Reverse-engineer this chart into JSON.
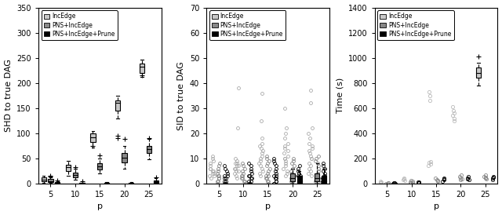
{
  "p_values": [
    5,
    10,
    15,
    20,
    25
  ],
  "colors": [
    "#c8c8c8",
    "#888888",
    "#000000"
  ],
  "legend_labels": [
    "IncEdge",
    "PNS+IncEdge",
    "PNS+IncEdge+Prune"
  ],
  "plot1": {
    "ylabel": "SHD to true DAG",
    "xlabel": "p",
    "ylim": [
      0,
      350
    ],
    "yticks": [
      0,
      50,
      100,
      150,
      200,
      250,
      300,
      350
    ],
    "boxes": {
      "IncEdge": {
        "5": {
          "q1": 5,
          "median": 8,
          "q3": 12,
          "whislo": 2,
          "whishi": 16,
          "fliers": []
        },
        "10": {
          "q1": 25,
          "median": 32,
          "q3": 38,
          "whislo": 15,
          "whishi": 45,
          "fliers": []
        },
        "15": {
          "q1": 82,
          "median": 92,
          "q3": 100,
          "whislo": 72,
          "whishi": 105,
          "fliers": [
            75
          ]
        },
        "20": {
          "q1": 145,
          "median": 160,
          "q3": 165,
          "whislo": 130,
          "whishi": 175,
          "fliers": [
            90,
            95
          ]
        },
        "25": {
          "q1": 220,
          "median": 232,
          "q3": 238,
          "whislo": 212,
          "whishi": 246,
          "fliers": [
            215
          ]
        }
      },
      "PNS+IncEdge": {
        "5": {
          "q1": 3,
          "median": 5,
          "q3": 9,
          "whislo": 1,
          "whishi": 12,
          "fliers": [
            14,
            16
          ]
        },
        "10": {
          "q1": 13,
          "median": 17,
          "q3": 22,
          "whislo": 7,
          "whishi": 30,
          "fliers": [
            32
          ]
        },
        "15": {
          "q1": 28,
          "median": 34,
          "q3": 40,
          "whislo": 20,
          "whishi": 50,
          "fliers": [
            56
          ]
        },
        "20": {
          "q1": 42,
          "median": 52,
          "q3": 60,
          "whislo": 30,
          "whishi": 75,
          "fliers": [
            88
          ]
        },
        "25": {
          "q1": 60,
          "median": 68,
          "q3": 75,
          "whislo": 48,
          "whishi": 88,
          "fliers": [
            90
          ]
        }
      },
      "PNS+IncEdge+Prune": {
        "5": {
          "q1": 0,
          "median": 1,
          "q3": 3,
          "whislo": 0,
          "whishi": 5,
          "fliers": [
            6
          ]
        },
        "10": {
          "q1": 0,
          "median": 1,
          "q3": 2,
          "whislo": 0,
          "whishi": 4,
          "fliers": [
            5
          ]
        },
        "15": {
          "q1": 0,
          "median": 1,
          "q3": 2,
          "whislo": 0,
          "whishi": 3,
          "fliers": []
        },
        "20": {
          "q1": 0,
          "median": 1,
          "q3": 2,
          "whislo": 0,
          "whishi": 3,
          "fliers": []
        },
        "25": {
          "q1": 1,
          "median": 3,
          "q3": 6,
          "whislo": 0,
          "whishi": 10,
          "fliers": [
            12
          ]
        }
      }
    }
  },
  "plot2": {
    "ylabel": "SID to true DAG",
    "xlabel": "p",
    "ylim": [
      0,
      70
    ],
    "yticks": [
      0,
      10,
      20,
      30,
      40,
      50,
      60,
      70
    ],
    "scatter_IncEdge": {
      "5": [
        2,
        3,
        4,
        5,
        6,
        7,
        8,
        9,
        10,
        11,
        3,
        4,
        5,
        6
      ],
      "10": [
        2,
        3,
        4,
        5,
        6,
        7,
        8,
        9,
        10,
        8,
        7,
        6,
        5,
        22,
        38
      ],
      "15": [
        3,
        4,
        5,
        6,
        7,
        8,
        9,
        10,
        11,
        12,
        13,
        14,
        15,
        16,
        18,
        25,
        36
      ],
      "20": [
        3,
        4,
        5,
        6,
        7,
        8,
        10,
        12,
        14,
        16,
        18,
        20,
        22,
        15,
        13,
        11,
        10,
        9,
        30
      ],
      "25": [
        3,
        4,
        5,
        6,
        7,
        8,
        10,
        12,
        14,
        16,
        18,
        20,
        22,
        15,
        13,
        11,
        10,
        32,
        37
      ]
    },
    "scatter_PNS": {
      "5": [
        0,
        1,
        1,
        2,
        2,
        3,
        3,
        4,
        5,
        6,
        7,
        8
      ],
      "10": [
        0,
        1,
        1,
        2,
        2,
        3,
        3,
        4,
        5,
        6,
        7,
        8
      ],
      "15": [
        0,
        1,
        1,
        2,
        2,
        3,
        3,
        4,
        5,
        6,
        7,
        8,
        9,
        10,
        11
      ],
      "20": [
        0,
        1,
        1,
        2,
        2,
        3,
        3,
        4,
        5,
        6,
        7,
        8,
        9,
        10
      ],
      "25": [
        0,
        1,
        1,
        2,
        2,
        3,
        3,
        4,
        5,
        6,
        7,
        8,
        9,
        10,
        11
      ]
    },
    "scatter_Prune": {
      "5": [
        0,
        0,
        1,
        1,
        2,
        2,
        3,
        3,
        4,
        5,
        6,
        7
      ],
      "10": [
        0,
        0,
        1,
        1,
        2,
        2,
        3,
        3,
        4,
        5,
        6,
        7,
        8
      ],
      "15": [
        0,
        0,
        1,
        1,
        2,
        2,
        3,
        3,
        4,
        5,
        6,
        7,
        8,
        9,
        10
      ],
      "20": [
        0,
        0,
        1,
        1,
        2,
        2,
        3,
        3,
        4,
        5,
        6,
        7
      ],
      "25": [
        0,
        0,
        1,
        1,
        2,
        2,
        3,
        3,
        4,
        5,
        6,
        7,
        8
      ]
    },
    "boxes_PNS": {
      "20": {
        "q1": 1,
        "median": 2,
        "q3": 4,
        "whislo": 0,
        "whishi": 6
      },
      "25": {
        "q1": 1,
        "median": 2,
        "q3": 4,
        "whislo": 0,
        "whishi": 8
      }
    },
    "boxes_Prune": {
      "20": {
        "q1": 0,
        "median": 1,
        "q3": 3,
        "whislo": 0,
        "whishi": 5
      },
      "25": {
        "q1": 0,
        "median": 1,
        "q3": 3,
        "whislo": 0,
        "whishi": 6
      }
    }
  },
  "plot3": {
    "ylabel": "Time (s)",
    "xlabel": "p",
    "ylim": [
      0,
      1400
    ],
    "yticks": [
      0,
      200,
      400,
      600,
      800,
      1000,
      1200,
      1400
    ],
    "scatter_IncEdge": {
      "5": [
        5,
        8,
        12,
        15
      ],
      "10": [
        22,
        30,
        38,
        45
      ],
      "15": [
        140,
        155,
        165,
        175,
        660,
        700,
        730
      ],
      "20": [
        500,
        520,
        540,
        560,
        580,
        610
      ],
      "25": []
    },
    "boxes_IncEdge": {
      "25": {
        "q1": 840,
        "median": 880,
        "q3": 920,
        "whislo": 780,
        "whishi": 960,
        "fliers": [
          1010
        ]
      }
    },
    "scatter_PNS": {
      "5": [
        1,
        2,
        3,
        5
      ],
      "10": [
        5,
        8,
        12,
        18,
        25
      ],
      "15": [
        18,
        25,
        32,
        40
      ],
      "20": [
        30,
        38,
        45,
        55,
        65
      ],
      "25": [
        35,
        42,
        50,
        58,
        68
      ]
    },
    "scatter_Prune": {
      "5": [
        1,
        2,
        3,
        4
      ],
      "10": [
        4,
        7,
        10,
        14
      ],
      "15": [
        20,
        28,
        35,
        42
      ],
      "20": [
        28,
        36,
        45,
        55
      ],
      "25": [
        32,
        40,
        48,
        58
      ]
    }
  }
}
